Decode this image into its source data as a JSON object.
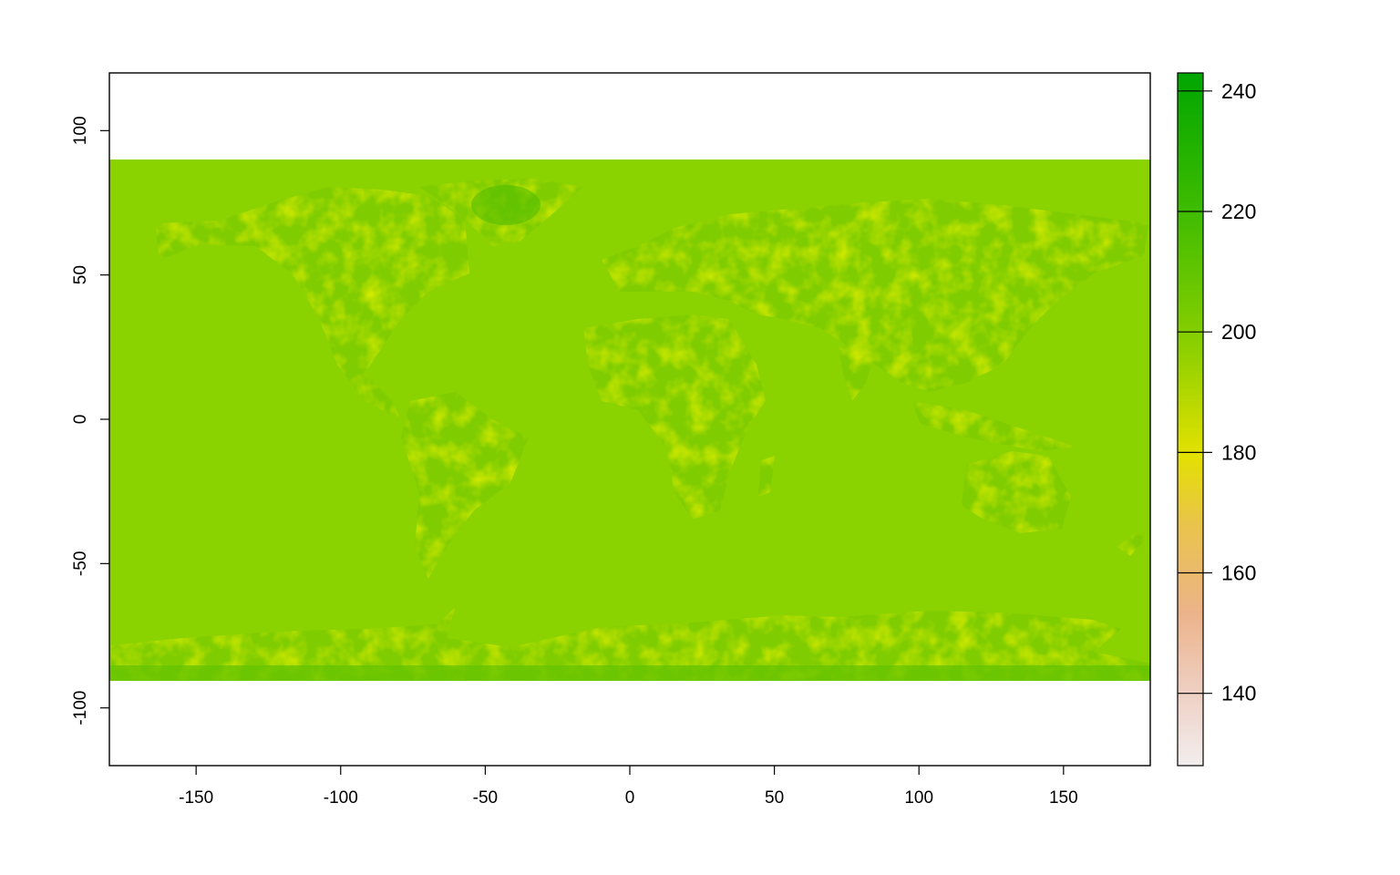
{
  "map": {
    "x_ticks": [
      "-150",
      "-100",
      "-50",
      "0",
      "50",
      "100",
      "150"
    ],
    "y_ticks": [
      "100",
      "50",
      "0",
      "-50",
      "-100"
    ],
    "x_range": [
      -180,
      180
    ],
    "y_range": [
      -120,
      120
    ],
    "raster_extent": {
      "lon": [
        -180,
        180
      ],
      "lat": [
        -90,
        90
      ]
    },
    "ocean_value_color": "#8ad200",
    "background_color": "#ffffff"
  },
  "legend": {
    "ticks": [
      "240",
      "220",
      "200",
      "180",
      "160",
      "140"
    ],
    "value_range": [
      128,
      243
    ],
    "color_ramp": [
      "#f2f2f2",
      "#ecb176",
      "#e6e600",
      "#63c600",
      "#00a600"
    ]
  }
}
